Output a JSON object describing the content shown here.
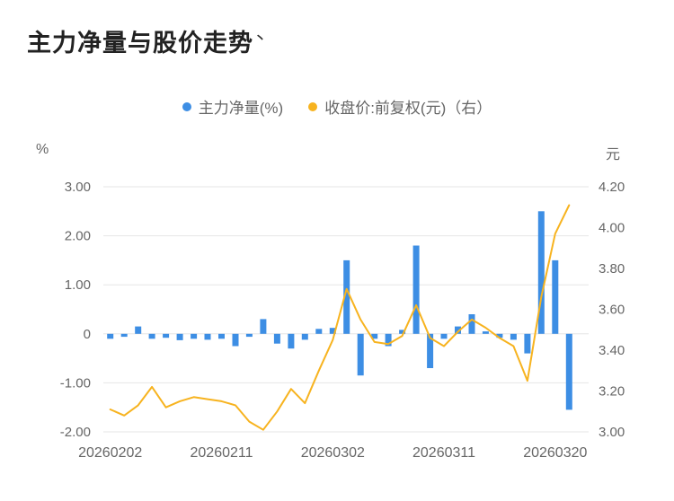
{
  "title": "主力净量与股价走势",
  "icons": {
    "title_mark": "丶"
  },
  "legend": [
    {
      "label": "主力净量(%)",
      "color": "#3d8ee4"
    },
    {
      "label": "收盘价:前复权(元)（右）",
      "color": "#f7b31f"
    }
  ],
  "axes": {
    "left_unit": "%",
    "right_unit": "元",
    "left_ticks": [
      "3.00",
      "2.00",
      "1.00",
      "0",
      "-1.00",
      "-2.00"
    ],
    "left_range": [
      3.0,
      -2.0
    ],
    "right_ticks": [
      "4.20",
      "4.00",
      "3.80",
      "3.60",
      "3.40",
      "3.20",
      "3.00"
    ],
    "right_range": [
      4.2,
      3.0
    ],
    "x_tick_labels": [
      "20260202",
      "20260211",
      "20260302",
      "20260311",
      "20260320"
    ],
    "x_tick_indices": [
      0,
      8,
      16,
      24,
      32
    ]
  },
  "chart_data": {
    "type": "bar",
    "title": "主力净量与股价走势",
    "x_tick_labels": [
      "20260202",
      "20260211",
      "20260302",
      "20260311",
      "20260320"
    ],
    "x_tick_indices": [
      0,
      8,
      16,
      24,
      32
    ],
    "series": [
      {
        "name": "主力净量(%)",
        "type": "bar",
        "axis": "left",
        "unit": "%",
        "color": "#3d8ee4",
        "values": [
          -0.1,
          -0.06,
          0.15,
          -0.1,
          -0.08,
          -0.13,
          -0.1,
          -0.12,
          -0.1,
          -0.25,
          -0.06,
          0.3,
          -0.2,
          -0.3,
          -0.12,
          0.1,
          0.12,
          1.5,
          -0.85,
          -0.1,
          -0.25,
          0.08,
          1.8,
          -0.7,
          -0.1,
          0.15,
          0.4,
          0.05,
          -0.08,
          -0.12,
          -0.4,
          2.5,
          1.5,
          -1.55
        ]
      },
      {
        "name": "收盘价:前复权(元)（右）",
        "type": "line",
        "axis": "right",
        "unit": "元",
        "color": "#f7b31f",
        "values": [
          3.11,
          3.08,
          3.13,
          3.22,
          3.12,
          3.15,
          3.17,
          3.16,
          3.15,
          3.13,
          3.05,
          3.01,
          3.1,
          3.21,
          3.14,
          3.3,
          3.45,
          3.7,
          3.55,
          3.44,
          3.43,
          3.47,
          3.62,
          3.46,
          3.42,
          3.49,
          3.55,
          3.51,
          3.46,
          3.42,
          3.25,
          3.66,
          3.97,
          4.11
        ]
      }
    ],
    "left_ylim": [
      -2.0,
      3.0
    ],
    "right_ylim": [
      3.0,
      4.2
    ],
    "grid": true,
    "legend_position": "top"
  },
  "colors": {
    "bar": "#3d8ee4",
    "line": "#f7b31f",
    "grid": "#e6e6e6",
    "axis_text": "#666666",
    "title_text": "#222222"
  }
}
